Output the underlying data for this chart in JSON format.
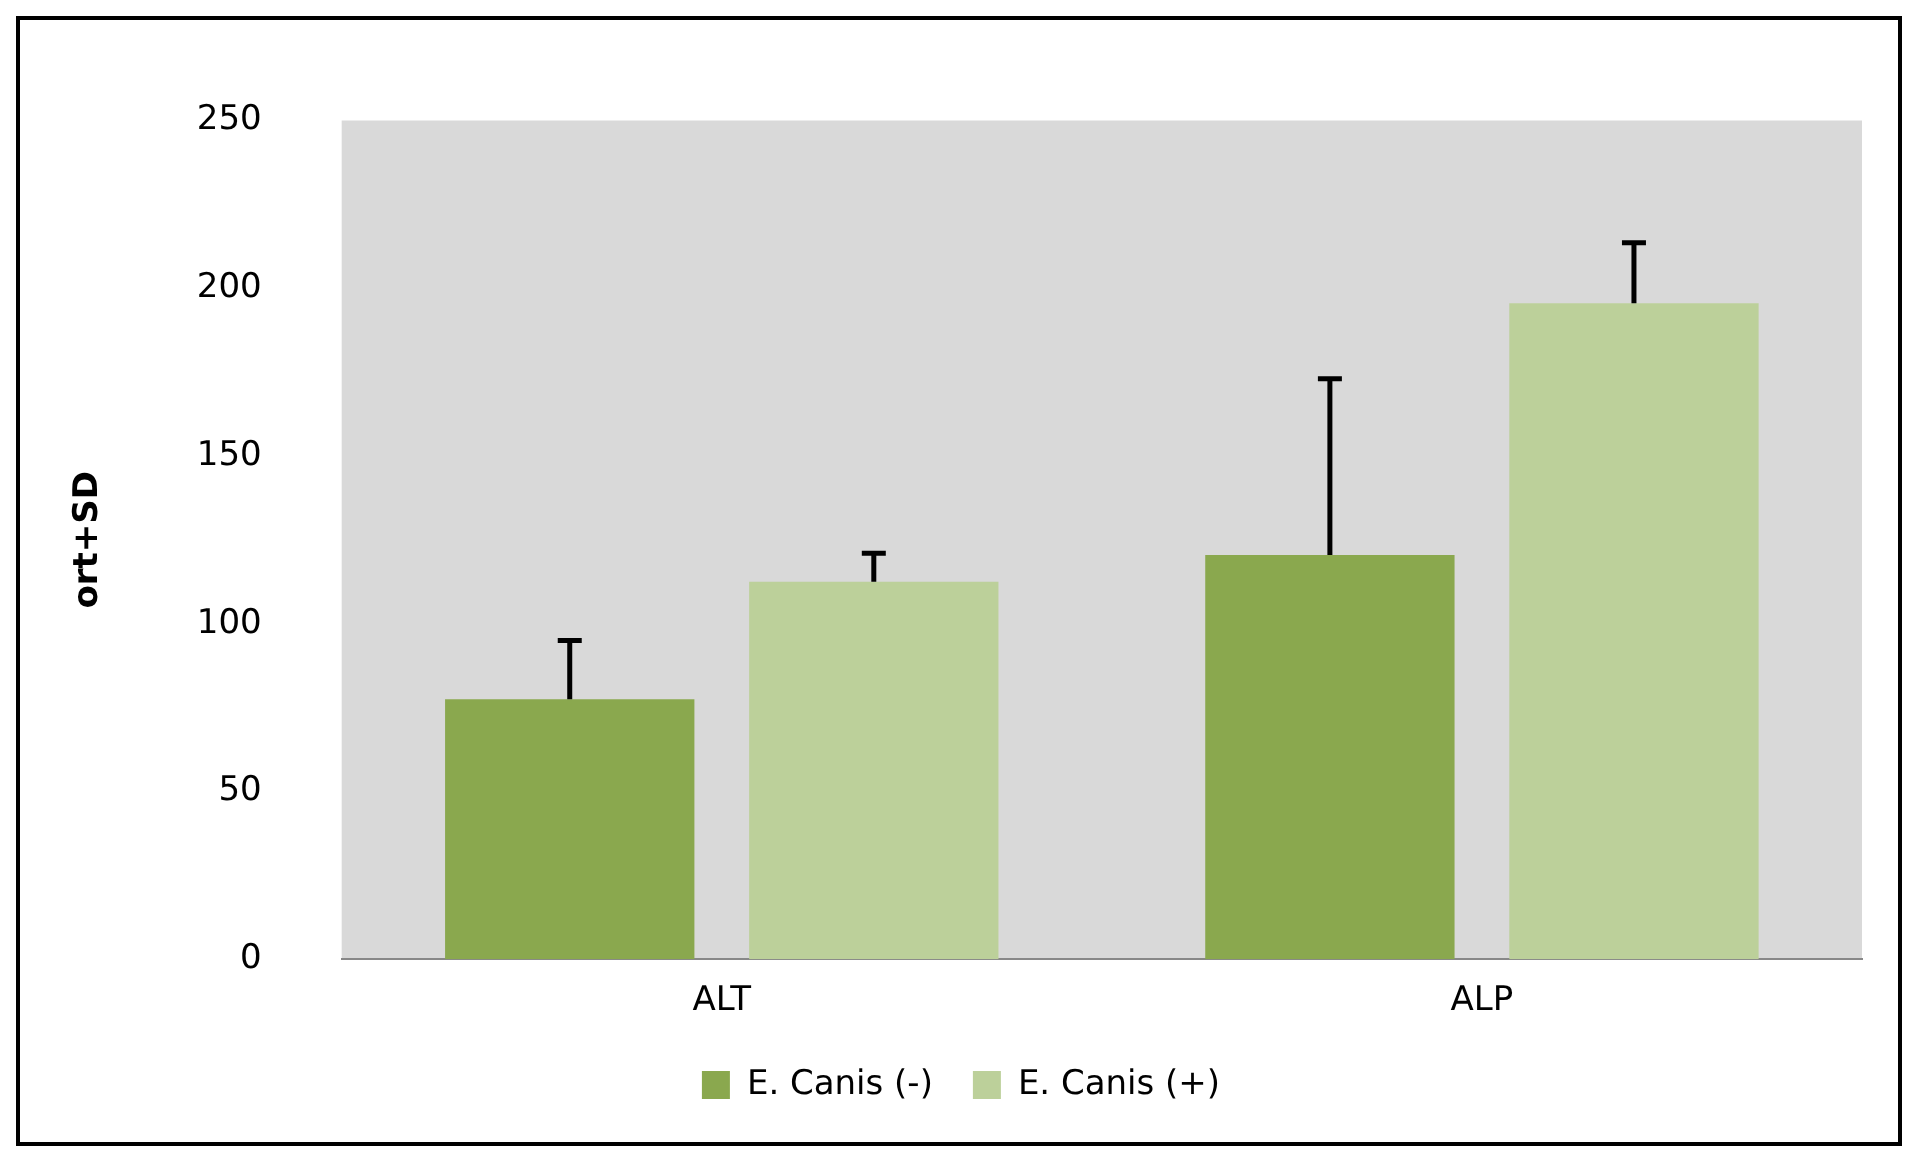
{
  "chart_data": {
    "type": "bar",
    "ylabel": "ort+SD",
    "categories": [
      "ALT",
      "ALP"
    ],
    "series": [
      {
        "name": "E. Canis (-)",
        "color": "#8aa84e",
        "values": [
          77.5,
          120.5
        ],
        "errors": [
          [
            77.5,
            95
          ],
          [
            120.5,
            173
          ]
        ]
      },
      {
        "name": "E. Canis (+)",
        "color": "#bcd09a",
        "values": [
          112.5,
          195.5
        ],
        "errors": [
          [
            112.5,
            121
          ],
          [
            195.5,
            213.5
          ]
        ]
      }
    ],
    "ylim": [
      0,
      250
    ],
    "yticks": [
      0,
      50,
      100,
      150,
      200,
      250
    ],
    "grid": false,
    "legend": "bottom"
  }
}
